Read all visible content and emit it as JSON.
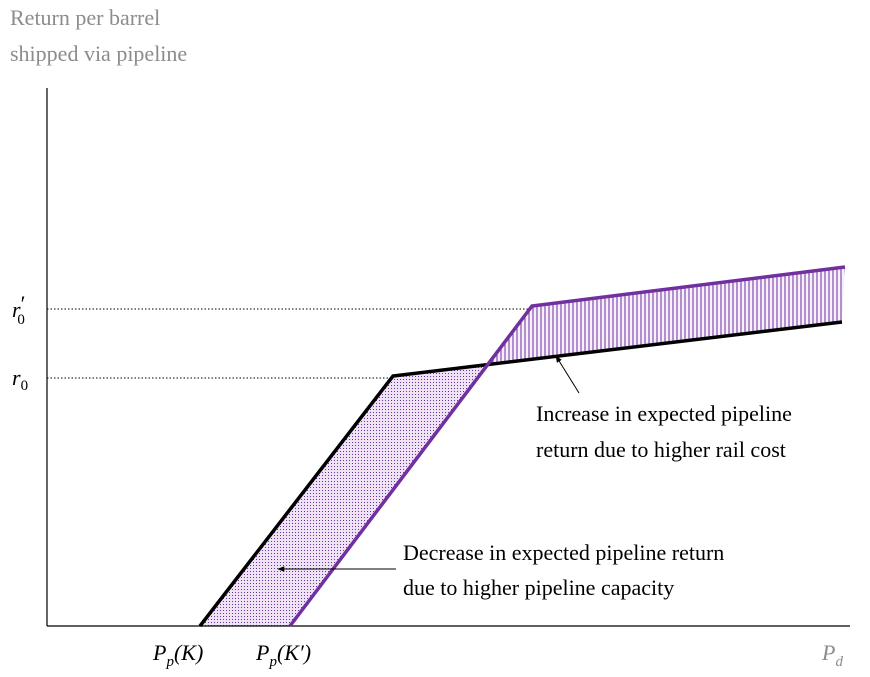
{
  "axis_title": {
    "lines": [
      "Return per barrel",
      "shipped via pipeline"
    ]
  },
  "y_labels": [
    {
      "base": "r",
      "prime": "′",
      "sub": "0"
    },
    {
      "base": "r",
      "sub": "0"
    }
  ],
  "x_labels": [
    {
      "base": "P",
      "sub": "p",
      "rest": "(K)"
    },
    {
      "base": "P",
      "sub": "p",
      "rest": "(K′)"
    },
    {
      "base": "P",
      "sub": "d"
    }
  ],
  "annotations": [
    {
      "lines": [
        "Increase in expected pipeline",
        "return due to higher rail cost"
      ]
    },
    {
      "lines": [
        "Decrease in expected pipeline return",
        "due to higher pipeline capacity"
      ]
    }
  ]
}
